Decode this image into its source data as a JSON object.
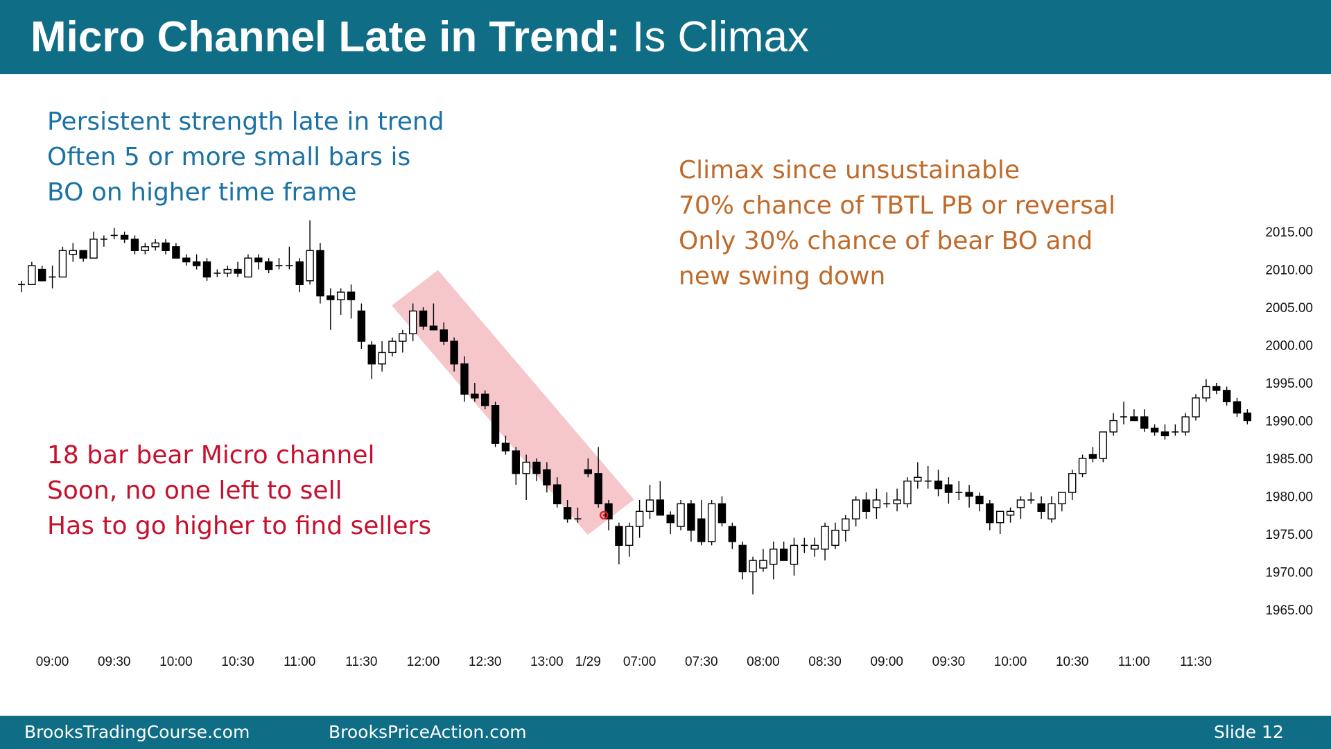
{
  "header": {
    "title_bold": "Micro Channel Late in Trend:",
    "title_rest": "Is Climax",
    "background_color": "#0f6d86"
  },
  "notes": {
    "blue": [
      "Persistent strength late in trend",
      "Often 5 or more small bars is",
      "BO on higher time frame"
    ],
    "orange": [
      "Climax since unsustainable",
      "70% chance of TBTL PB or reversal",
      "Only 30% chance of bear BO and",
      "new swing down"
    ],
    "red": [
      "18 bar bear Micro channel",
      "Soon, no one left to sell",
      "Has to go higher to find sellers"
    ]
  },
  "footer": {
    "left": "BrooksTradingCourse.com",
    "middle": "BrooksPriceAction.com",
    "right": "Slide  12"
  },
  "chart_data": {
    "type": "candlestick",
    "ylim": [
      1962,
      2018
    ],
    "y_ticks": [
      2015,
      2010,
      2005,
      2000,
      1995,
      1990,
      1985,
      1980,
      1975,
      1970,
      1965
    ],
    "x_ticks": [
      {
        "i": 3,
        "label": "09:00"
      },
      {
        "i": 9,
        "label": "09:30"
      },
      {
        "i": 15,
        "label": "10:00"
      },
      {
        "i": 21,
        "label": "10:30"
      },
      {
        "i": 27,
        "label": "11:00"
      },
      {
        "i": 33,
        "label": "11:30"
      },
      {
        "i": 39,
        "label": "12:00"
      },
      {
        "i": 45,
        "label": "12:30"
      },
      {
        "i": 51,
        "label": "13:00"
      },
      {
        "i": 55,
        "label": "1/29"
      },
      {
        "i": 60,
        "label": "07:00"
      },
      {
        "i": 66,
        "label": "07:30"
      },
      {
        "i": 72,
        "label": "08:00"
      },
      {
        "i": 78,
        "label": "08:30"
      },
      {
        "i": 84,
        "label": "09:00"
      },
      {
        "i": 90,
        "label": "09:30"
      },
      {
        "i": 96,
        "label": "10:00"
      },
      {
        "i": 102,
        "label": "10:30"
      },
      {
        "i": 108,
        "label": "11:00"
      },
      {
        "i": 114,
        "label": "11:30"
      }
    ],
    "candles": [
      [
        2008.0,
        2008.5,
        2007.0,
        2008.0
      ],
      [
        2008.0,
        2011.0,
        2008.0,
        2010.5
      ],
      [
        2010.0,
        2010.5,
        2008.5,
        2008.5
      ],
      [
        2009.0,
        2010.5,
        2007.5,
        2009.0
      ],
      [
        2009.0,
        2013.0,
        2009.0,
        2012.5
      ],
      [
        2012.0,
        2013.5,
        2011.0,
        2012.5
      ],
      [
        2012.5,
        2012.5,
        2011.0,
        2011.5
      ],
      [
        2011.5,
        2015.0,
        2011.5,
        2014.0
      ],
      [
        2014.0,
        2014.5,
        2013.0,
        2014.0
      ],
      [
        2014.5,
        2015.5,
        2014.0,
        2014.5
      ],
      [
        2014.5,
        2015.0,
        2013.5,
        2014.0
      ],
      [
        2014.0,
        2014.5,
        2012.0,
        2012.5
      ],
      [
        2012.5,
        2013.5,
        2012.0,
        2013.0
      ],
      [
        2013.0,
        2014.0,
        2012.5,
        2013.5
      ],
      [
        2013.5,
        2014.0,
        2012.0,
        2012.5
      ],
      [
        2013.0,
        2013.5,
        2011.5,
        2011.5
      ],
      [
        2011.5,
        2012.0,
        2010.5,
        2011.0
      ],
      [
        2011.0,
        2012.0,
        2010.0,
        2010.5
      ],
      [
        2011.0,
        2011.5,
        2008.5,
        2009.0
      ],
      [
        2009.5,
        2010.0,
        2009.0,
        2009.5
      ],
      [
        2009.5,
        2010.5,
        2009.0,
        2010.0
      ],
      [
        2010.0,
        2011.0,
        2009.0,
        2009.5
      ],
      [
        2009.0,
        2012.0,
        2009.0,
        2011.5
      ],
      [
        2011.5,
        2012.0,
        2010.0,
        2011.0
      ],
      [
        2011.0,
        2011.5,
        2009.5,
        2010.0
      ],
      [
        2010.5,
        2011.5,
        2010.0,
        2010.5
      ],
      [
        2010.5,
        2013.0,
        2010.0,
        2010.5
      ],
      [
        2011.0,
        2011.5,
        2007.0,
        2008.0
      ],
      [
        2008.5,
        2016.5,
        2008.0,
        2012.5
      ],
      [
        2012.5,
        2013.5,
        2005.5,
        2006.5
      ],
      [
        2006.5,
        2007.5,
        2002.0,
        2006.0
      ],
      [
        2006.0,
        2007.5,
        2004.0,
        2007.0
      ],
      [
        2007.0,
        2008.0,
        2003.5,
        2006.0
      ],
      [
        2004.5,
        2005.5,
        1999.5,
        2000.5
      ],
      [
        2000.0,
        2000.5,
        1995.5,
        1997.5
      ],
      [
        1997.5,
        2000.5,
        1996.5,
        1999.0
      ],
      [
        1999.0,
        2001.0,
        1998.5,
        2000.5
      ],
      [
        2000.5,
        2002.0,
        1999.0,
        2001.5
      ],
      [
        2001.5,
        2005.5,
        2000.5,
        2004.5
      ],
      [
        2004.5,
        2005.0,
        2002.0,
        2002.5
      ],
      [
        2002.5,
        2005.5,
        2002.0,
        2002.0
      ],
      [
        2002.0,
        2003.0,
        2000.0,
        2000.5
      ],
      [
        2000.5,
        2001.0,
        1996.5,
        1997.5
      ],
      [
        1997.5,
        1998.5,
        1992.5,
        1993.5
      ],
      [
        1993.5,
        1995.0,
        1992.5,
        1993.0
      ],
      [
        1993.5,
        1994.0,
        1991.5,
        1992.0
      ],
      [
        1992.0,
        1992.5,
        1986.5,
        1987.0
      ],
      [
        1987.0,
        1988.0,
        1985.5,
        1986.0
      ],
      [
        1986.0,
        1986.5,
        1981.5,
        1983.0
      ],
      [
        1983.0,
        1985.5,
        1979.5,
        1984.5
      ],
      [
        1984.5,
        1985.0,
        1982.0,
        1983.0
      ],
      [
        1983.5,
        1984.5,
        1980.5,
        1981.5
      ],
      [
        1981.5,
        1982.5,
        1978.5,
        1979.0
      ],
      [
        1978.5,
        1979.5,
        1976.5,
        1977.0
      ],
      [
        1977.0,
        1978.5,
        1976.5,
        1977.0
      ],
      [
        1983.5,
        1985.0,
        1982.5,
        1983.0
      ],
      [
        1983.0,
        1986.5,
        1978.5,
        1979.0
      ],
      [
        1979.0,
        1979.5,
        1975.5,
        1977.0
      ],
      [
        1976.0,
        1976.5,
        1971.0,
        1973.5
      ],
      [
        1973.5,
        1976.5,
        1972.0,
        1976.0
      ],
      [
        1976.0,
        1979.5,
        1974.5,
        1978.0
      ],
      [
        1978.0,
        1981.5,
        1977.0,
        1979.5
      ],
      [
        1979.5,
        1982.0,
        1977.5,
        1977.5
      ],
      [
        1977.5,
        1978.0,
        1975.0,
        1976.5
      ],
      [
        1976.0,
        1979.5,
        1975.5,
        1979.0
      ],
      [
        1979.0,
        1979.5,
        1974.0,
        1975.5
      ],
      [
        1977.0,
        1979.5,
        1973.5,
        1974.0
      ],
      [
        1974.0,
        1979.5,
        1973.5,
        1979.0
      ],
      [
        1979.0,
        1980.0,
        1976.0,
        1976.5
      ],
      [
        1976.0,
        1976.5,
        1973.0,
        1974.0
      ],
      [
        1973.5,
        1974.0,
        1969.0,
        1970.0
      ],
      [
        1970.0,
        1972.0,
        1967.0,
        1971.5
      ],
      [
        1970.5,
        1973.0,
        1970.0,
        1971.5
      ],
      [
        1971.0,
        1974.0,
        1969.0,
        1973.0
      ],
      [
        1973.0,
        1974.0,
        1971.5,
        1971.5
      ],
      [
        1971.0,
        1974.5,
        1969.5,
        1973.5
      ],
      [
        1973.5,
        1974.5,
        1972.5,
        1973.5
      ],
      [
        1973.0,
        1974.5,
        1972.0,
        1973.5
      ],
      [
        1973.0,
        1976.5,
        1971.5,
        1976.0
      ],
      [
        1973.5,
        1976.5,
        1973.0,
        1975.5
      ],
      [
        1975.5,
        1977.5,
        1974.0,
        1977.0
      ],
      [
        1977.0,
        1980.0,
        1976.0,
        1979.5
      ],
      [
        1979.5,
        1980.5,
        1977.0,
        1978.0
      ],
      [
        1978.5,
        1981.0,
        1977.0,
        1979.5
      ],
      [
        1979.0,
        1980.5,
        1978.5,
        1979.0
      ],
      [
        1979.0,
        1981.0,
        1978.0,
        1979.5
      ],
      [
        1979.0,
        1982.5,
        1978.5,
        1982.0
      ],
      [
        1982.0,
        1984.5,
        1981.0,
        1982.5
      ],
      [
        1982.0,
        1984.0,
        1981.0,
        1982.0
      ],
      [
        1982.0,
        1983.5,
        1980.0,
        1981.0
      ],
      [
        1981.5,
        1982.5,
        1979.0,
        1980.5
      ],
      [
        1980.5,
        1982.0,
        1979.5,
        1980.5
      ],
      [
        1980.5,
        1981.5,
        1978.5,
        1980.0
      ],
      [
        1980.0,
        1980.5,
        1978.0,
        1979.0
      ],
      [
        1979.0,
        1979.5,
        1975.5,
        1976.5
      ],
      [
        1976.5,
        1978.0,
        1975.0,
        1978.0
      ],
      [
        1977.5,
        1978.5,
        1976.5,
        1978.0
      ],
      [
        1978.5,
        1980.0,
        1977.0,
        1979.5
      ],
      [
        1979.5,
        1980.5,
        1979.0,
        1979.5
      ],
      [
        1979.0,
        1980.0,
        1977.0,
        1978.0
      ],
      [
        1977.0,
        1980.0,
        1976.5,
        1979.0
      ],
      [
        1979.0,
        1980.5,
        1978.0,
        1980.5
      ],
      [
        1980.5,
        1983.5,
        1979.5,
        1983.0
      ],
      [
        1983.0,
        1985.5,
        1982.5,
        1985.0
      ],
      [
        1985.5,
        1986.5,
        1984.5,
        1985.0
      ],
      [
        1985.0,
        1988.5,
        1984.5,
        1988.5
      ],
      [
        1988.5,
        1991.0,
        1988.0,
        1990.0
      ],
      [
        1990.5,
        1992.5,
        1989.5,
        1990.5
      ],
      [
        1990.5,
        1991.5,
        1990.0,
        1990.0
      ],
      [
        1990.5,
        1991.5,
        1988.5,
        1989.0
      ],
      [
        1989.0,
        1989.5,
        1988.0,
        1988.5
      ],
      [
        1988.5,
        1989.5,
        1987.5,
        1988.0
      ],
      [
        1988.5,
        1989.5,
        1988.0,
        1988.5
      ],
      [
        1988.5,
        1991.0,
        1988.0,
        1990.5
      ],
      [
        1990.5,
        1993.5,
        1990.0,
        1993.0
      ],
      [
        1993.0,
        1995.5,
        1992.5,
        1994.5
      ],
      [
        1994.5,
        1995.0,
        1993.5,
        1994.0
      ],
      [
        1994.0,
        1994.5,
        1992.0,
        1992.5
      ],
      [
        1992.5,
        1993.0,
        1990.5,
        1991.0
      ],
      [
        1991.0,
        1991.5,
        1989.5,
        1990.0
      ]
    ],
    "micro_channel_start": 39,
    "micro_channel_end": 56
  }
}
